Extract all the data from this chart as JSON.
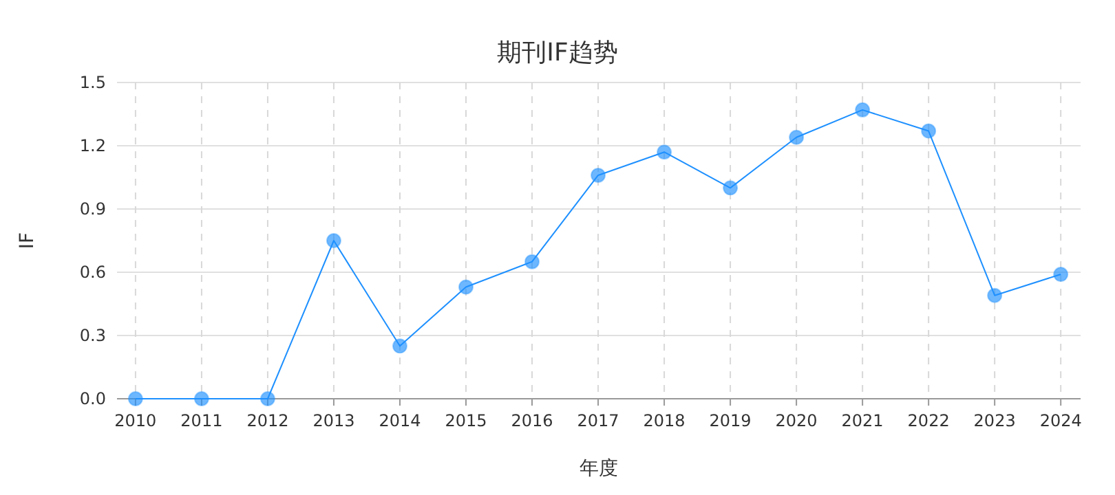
{
  "chart_data": {
    "type": "line",
    "title": "期刊IF趋势",
    "xlabel": "年度",
    "ylabel": "IF",
    "categories": [
      "2010",
      "2011",
      "2012",
      "2013",
      "2014",
      "2015",
      "2016",
      "2017",
      "2018",
      "2019",
      "2020",
      "2021",
      "2022",
      "2023",
      "2024"
    ],
    "series": [
      {
        "color": "#1e90ff",
        "values": [
          0,
          0,
          0,
          0.75,
          0.25,
          0.53,
          0.65,
          1.06,
          1.17,
          1.0,
          1.24,
          1.37,
          1.27,
          0.49,
          0.59
        ]
      }
    ],
    "ylim": [
      0,
      1.5
    ],
    "yticks": [
      {
        "value": 0,
        "label": "0.0"
      },
      {
        "value": 0.3,
        "label": "0.3"
      },
      {
        "value": 0.6,
        "label": "0.6"
      },
      {
        "value": 0.9,
        "label": "0.9"
      },
      {
        "value": 1.2,
        "label": "1.2"
      },
      {
        "value": 1.5,
        "label": "1.5"
      }
    ],
    "grid": true,
    "marker": "circle",
    "line_style": "solid"
  }
}
